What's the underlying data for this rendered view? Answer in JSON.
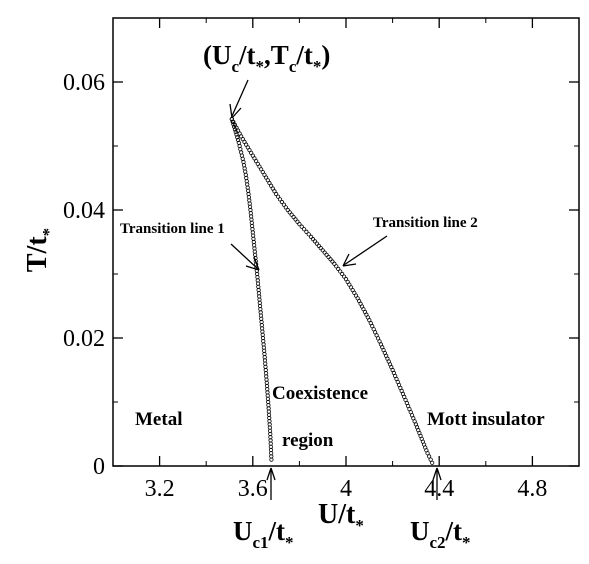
{
  "chart_data": {
    "type": "scatter",
    "xlabel": "U/t",
    "xlabel_sub": "*",
    "ylabel": "T/t",
    "ylabel_sub": "*",
    "xlim": [
      3.0,
      5.0
    ],
    "ylim": [
      0,
      0.07
    ],
    "xticks": [
      3.2,
      3.6,
      4.0,
      4.4,
      4.8
    ],
    "xtick_labels": [
      "3.2",
      "3.6",
      "4",
      "4.4",
      "4.8"
    ],
    "yticks": [
      0,
      0.02,
      0.04,
      0.06
    ],
    "ytick_labels": [
      "0",
      "0.02",
      "0.04",
      "0.06"
    ],
    "grid": false,
    "series": [
      {
        "name": "Transition line 1",
        "points": [
          [
            3.51,
            0.0542
          ],
          [
            3.52,
            0.053
          ],
          [
            3.53,
            0.0518
          ],
          [
            3.54,
            0.0505
          ],
          [
            3.55,
            0.049
          ],
          [
            3.56,
            0.0475
          ],
          [
            3.57,
            0.0455
          ],
          [
            3.58,
            0.043
          ],
          [
            3.59,
            0.04
          ],
          [
            3.6,
            0.0365
          ],
          [
            3.61,
            0.033
          ],
          [
            3.62,
            0.0295
          ],
          [
            3.63,
            0.0255
          ],
          [
            3.64,
            0.0215
          ],
          [
            3.65,
            0.0175
          ],
          [
            3.66,
            0.013
          ],
          [
            3.668,
            0.009
          ],
          [
            3.675,
            0.005
          ],
          [
            3.68,
            0.001
          ]
        ]
      },
      {
        "name": "Transition line 2",
        "points": [
          [
            3.51,
            0.0542
          ],
          [
            3.55,
            0.0515
          ],
          [
            3.6,
            0.0485
          ],
          [
            3.65,
            0.0455
          ],
          [
            3.7,
            0.0425
          ],
          [
            3.75,
            0.04
          ],
          [
            3.8,
            0.0378
          ],
          [
            3.85,
            0.0358
          ],
          [
            3.9,
            0.0337
          ],
          [
            3.95,
            0.0316
          ],
          [
            4.0,
            0.0292
          ],
          [
            4.05,
            0.0262
          ],
          [
            4.1,
            0.0228
          ],
          [
            4.15,
            0.019
          ],
          [
            4.2,
            0.015
          ],
          [
            4.25,
            0.0108
          ],
          [
            4.3,
            0.0065
          ],
          [
            4.35,
            0.002
          ],
          [
            4.37,
            0.0005
          ]
        ]
      }
    ],
    "critical_point": {
      "U": 3.51,
      "T": 0.0542
    },
    "annotations": {
      "critical": {
        "text": "(U",
        "sub1": "c",
        "mid": "/t",
        "sub2": "*",
        "mid2": ",T",
        "sub3": "c",
        "mid3": "/t",
        "sub4": "*",
        "end": ")"
      },
      "line1": "Transition line 1",
      "line2": "Transition line 2",
      "metal": "Metal",
      "coexistence": "Coexistence",
      "region": "region",
      "mott": "Mott insulator",
      "uc1": {
        "main": "U",
        "sub": "c1",
        "tail": "/t",
        "tail_sub": "*"
      },
      "uc2": {
        "main": "U",
        "sub": "c2",
        "tail": "/t",
        "tail_sub": "*"
      }
    }
  }
}
